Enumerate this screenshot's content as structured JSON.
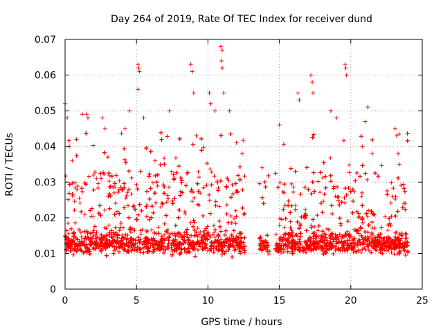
{
  "chart_data": {
    "type": "scatter",
    "title": "Day 264 of 2019, Rate Of TEC Index for receiver dund",
    "xlabel": "GPS time / hours",
    "ylabel": "ROTI / TECUs",
    "xlim": [
      0,
      25
    ],
    "ylim": [
      0,
      0.07
    ],
    "xticks": [
      0,
      5,
      10,
      15,
      20,
      25
    ],
    "yticks": [
      0,
      0.01,
      0.02,
      0.03,
      0.04,
      0.05,
      0.06,
      0.07
    ],
    "xtick_labels": [
      "0",
      "5",
      "10",
      "15",
      "20",
      "25"
    ],
    "ytick_labels": [
      "0",
      "0.01",
      "0.02",
      "0.03",
      "0.04",
      "0.05",
      "0.06",
      "0.07"
    ],
    "grid": true,
    "marker": "+",
    "color": "#ff0000",
    "data_gaps_hours": [
      [
        12.6,
        13.6
      ],
      [
        14.3,
        14.7
      ]
    ],
    "series": [
      {
        "name": "ROTI",
        "points": [
          [
            0.0,
            0.052
          ],
          [
            0.15,
            0.048
          ],
          [
            0.3,
            0.04
          ],
          [
            0.5,
            0.036
          ],
          [
            0.8,
            0.042
          ],
          [
            1.2,
            0.049
          ],
          [
            1.5,
            0.049
          ],
          [
            1.6,
            0.048
          ],
          [
            2.0,
            0.032
          ],
          [
            2.6,
            0.048
          ],
          [
            2.8,
            0.045
          ],
          [
            3.0,
            0.037
          ],
          [
            4.2,
            0.045
          ],
          [
            4.5,
            0.05
          ],
          [
            5.1,
            0.063
          ],
          [
            5.15,
            0.062
          ],
          [
            5.2,
            0.061
          ],
          [
            5.1,
            0.056
          ],
          [
            5.5,
            0.048
          ],
          [
            6.3,
            0.036
          ],
          [
            7.3,
            0.05
          ],
          [
            8.8,
            0.063
          ],
          [
            8.9,
            0.061
          ],
          [
            9.0,
            0.055
          ],
          [
            10.1,
            0.055
          ],
          [
            10.2,
            0.052
          ],
          [
            10.5,
            0.05
          ],
          [
            10.9,
            0.068
          ],
          [
            11.0,
            0.067
          ],
          [
            10.95,
            0.064
          ],
          [
            11.0,
            0.062
          ],
          [
            11.1,
            0.055
          ],
          [
            11.5,
            0.05
          ],
          [
            12.0,
            0.041
          ],
          [
            12.4,
            0.038
          ],
          [
            13.8,
            0.034
          ],
          [
            15.0,
            0.046
          ],
          [
            16.3,
            0.055
          ],
          [
            16.4,
            0.053
          ],
          [
            17.2,
            0.06
          ],
          [
            17.3,
            0.058
          ],
          [
            17.35,
            0.055
          ],
          [
            18.6,
            0.05
          ],
          [
            19.0,
            0.048
          ],
          [
            19.6,
            0.063
          ],
          [
            19.65,
            0.062
          ],
          [
            19.7,
            0.06
          ],
          [
            20.8,
            0.04
          ],
          [
            21.0,
            0.047
          ],
          [
            21.2,
            0.051
          ],
          [
            21.5,
            0.038
          ],
          [
            23.1,
            0.045
          ],
          [
            23.2,
            0.043
          ],
          [
            23.4,
            0.035
          ],
          [
            23.8,
            0.024
          ]
        ]
      }
    ]
  }
}
